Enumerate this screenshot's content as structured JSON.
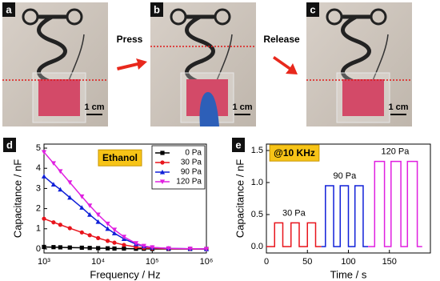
{
  "panels": [
    {
      "label": "a",
      "scale": "1 cm"
    },
    {
      "label": "b",
      "scale": "1 cm"
    },
    {
      "label": "c",
      "scale": "1 cm"
    }
  ],
  "arrows": [
    "Press",
    "Release"
  ],
  "chart_data": [
    {
      "type": "line",
      "panel": "d",
      "annotation": "Ethanol",
      "xlabel": "Frequency / Hz",
      "ylabel": "Capacitance / nF",
      "log_x": true,
      "legend": "upper right",
      "x": [
        1000,
        1500,
        2000,
        3000,
        5000,
        7000,
        10000,
        15000,
        20000,
        30000,
        50000,
        70000,
        100000,
        200000,
        500000,
        1000000
      ],
      "series": [
        {
          "name": "0 Pa",
          "color": "#000000",
          "marker": "square",
          "values": [
            0.1,
            0.09,
            0.08,
            0.07,
            0.06,
            0.05,
            0.04,
            0.03,
            0.02,
            0.02,
            0.01,
            0.01,
            0,
            0,
            0,
            0
          ]
        },
        {
          "name": "30 Pa",
          "color": "#e8141c",
          "marker": "circle",
          "values": [
            1.5,
            1.32,
            1.2,
            1.03,
            0.82,
            0.68,
            0.54,
            0.4,
            0.31,
            0.2,
            0.1,
            0.05,
            0.03,
            0.01,
            0,
            0
          ]
        },
        {
          "name": "90 Pa",
          "color": "#1020d8",
          "marker": "triangle",
          "values": [
            3.6,
            3.2,
            2.95,
            2.55,
            2.05,
            1.7,
            1.35,
            1.0,
            0.78,
            0.5,
            0.24,
            0.13,
            0.07,
            0.03,
            0.01,
            0
          ]
        },
        {
          "name": "120 Pa",
          "color": "#e020e0",
          "marker": "triangle-down",
          "values": [
            4.8,
            4.25,
            3.85,
            3.3,
            2.6,
            2.15,
            1.7,
            1.25,
            0.95,
            0.6,
            0.28,
            0.15,
            0.08,
            0.03,
            0.01,
            0
          ]
        }
      ],
      "xlim": [
        1000,
        1000000
      ],
      "xticks": [
        {
          "value": 1000,
          "label": "10³"
        },
        {
          "value": 10000,
          "label": "10⁴"
        },
        {
          "value": 100000,
          "label": "10⁵"
        },
        {
          "value": 1000000,
          "label": "10⁶"
        }
      ],
      "ylim": [
        -0.2,
        5.2
      ],
      "yticks": [
        0,
        1,
        2,
        3,
        4,
        5
      ]
    },
    {
      "type": "line",
      "panel": "e",
      "annotation": "@10 KHz",
      "xlabel": "Time / s",
      "ylabel": "Capacitance / nF",
      "series": [
        {
          "name": "30 Pa",
          "color": "#e8141c",
          "x": [
            0,
            10,
            10,
            20,
            20,
            30,
            30,
            40,
            40,
            50,
            50,
            60,
            60,
            67
          ],
          "values": [
            0,
            0,
            0.37,
            0.37,
            0,
            0,
            0.37,
            0.37,
            0,
            0,
            0.37,
            0.37,
            0,
            0
          ]
        },
        {
          "name": "90 Pa",
          "color": "#1020d8",
          "x": [
            67,
            72,
            72,
            82,
            82,
            90,
            90,
            100,
            100,
            108,
            108,
            118,
            118,
            124
          ],
          "values": [
            0,
            0,
            0.95,
            0.95,
            0,
            0,
            0.95,
            0.95,
            0,
            0,
            0.95,
            0.95,
            0,
            0
          ]
        },
        {
          "name": "120 Pa",
          "color": "#e020e0",
          "x": [
            124,
            132,
            132,
            144,
            144,
            152,
            152,
            164,
            164,
            172,
            172,
            184,
            184,
            190
          ],
          "values": [
            0,
            0,
            1.33,
            1.33,
            0,
            0,
            1.33,
            1.33,
            0,
            0,
            1.33,
            1.33,
            0,
            0
          ]
        }
      ],
      "xlim": [
        0,
        200
      ],
      "xticks": [
        0,
        50,
        100,
        150
      ],
      "ylim": [
        -0.1,
        1.6
      ],
      "yticks": [
        {
          "value": 0,
          "label": "0.0"
        },
        0.5,
        {
          "value": 1,
          "label": "1.0"
        },
        1.5
      ]
    }
  ]
}
